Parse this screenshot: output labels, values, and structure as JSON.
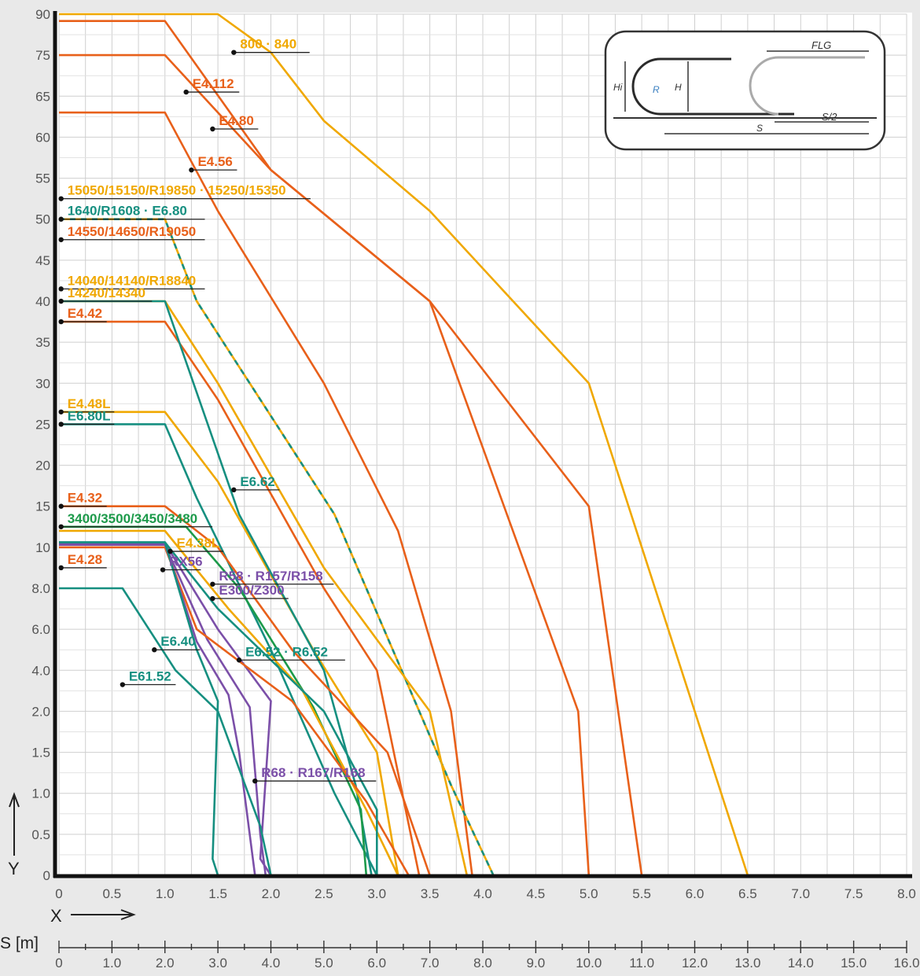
{
  "chart_data": {
    "type": "line",
    "title": "",
    "xlabel": "X",
    "ylabel": "Y",
    "x_ticks": [
      "0",
      "0.5",
      "1.0",
      "1.5",
      "2.0",
      "2.5",
      "3.0",
      "3.5",
      "4.0",
      "4.5",
      "5.0",
      "5.5",
      "6.0",
      "6.5",
      "7.0",
      "7.5",
      "8.0"
    ],
    "y_ticks": [
      {
        "label": "0",
        "value": 0
      },
      {
        "label": "0.5",
        "value": 0.5
      },
      {
        "label": "1.0",
        "value": 1.0
      },
      {
        "label": "1.5",
        "value": 1.5
      },
      {
        "label": "2.0",
        "value": 2.0
      },
      {
        "label": "4.0",
        "value": 4.0
      },
      {
        "label": "6.0",
        "value": 6.0
      },
      {
        "label": "8.0",
        "value": 8.0
      },
      {
        "label": "10",
        "value": 10
      },
      {
        "label": "15",
        "value": 15
      },
      {
        "label": "20",
        "value": 20
      },
      {
        "label": "25",
        "value": 25
      },
      {
        "label": "30",
        "value": 30
      },
      {
        "label": "35",
        "value": 35
      },
      {
        "label": "40",
        "value": 40
      },
      {
        "label": "45",
        "value": 45
      },
      {
        "label": "50",
        "value": 50
      },
      {
        "label": "55",
        "value": 55
      },
      {
        "label": "60",
        "value": 60
      },
      {
        "label": "65",
        "value": 65
      },
      {
        "label": "75",
        "value": 75
      },
      {
        "label": "90",
        "value": 90
      }
    ],
    "s_axis": {
      "label": "S [m]",
      "ticks": [
        "0",
        "1.0",
        "2.0",
        "3.0",
        "4.0",
        "5.0",
        "6.0",
        "7.0",
        "8.0",
        "9.0",
        "10.0",
        "11.0",
        "12.0",
        "13.0",
        "14.0",
        "15.0",
        "16.0"
      ]
    },
    "xlim": [
      0,
      8.0
    ],
    "y_scale": "segmented",
    "grid": true,
    "legend": "inline labels",
    "series": [
      {
        "name": "800 · 840",
        "color": "#f0a800",
        "points": [
          [
            0,
            90
          ],
          [
            1.5,
            90
          ],
          [
            2.0,
            76
          ],
          [
            2.5,
            62
          ],
          [
            3.5,
            51
          ],
          [
            5.0,
            30
          ],
          [
            6.5,
            0
          ]
        ]
      },
      {
        "name": "E4.112",
        "color": "#e8601a",
        "points": [
          [
            0,
            87.5
          ],
          [
            1.0,
            87.5
          ],
          [
            2.0,
            56
          ],
          [
            3.5,
            40
          ],
          [
            5.0,
            15
          ],
          [
            5.5,
            0
          ]
        ]
      },
      {
        "name": "E4.80",
        "color": "#e8601a",
        "points": [
          [
            0,
            75
          ],
          [
            1.0,
            75
          ],
          [
            2.0,
            56
          ],
          [
            3.5,
            40
          ],
          [
            4.9,
            2
          ],
          [
            5.0,
            0
          ]
        ]
      },
      {
        "name": "E4.56",
        "color": "#e8601a",
        "points": [
          [
            0,
            63
          ],
          [
            1.0,
            63
          ],
          [
            1.5,
            51
          ],
          [
            2.5,
            30
          ],
          [
            3.2,
            12
          ],
          [
            3.7,
            2
          ],
          [
            3.9,
            0
          ]
        ]
      },
      {
        "name": "15050/15150/R19850 · 15250/15350",
        "color": "#f0a800",
        "points": [
          [
            0,
            52
          ],
          [
            0,
            52
          ]
        ]
      },
      {
        "name": "1640/R1608 · E6.80",
        "color": "#f0a800",
        "dashed": true,
        "points": [
          [
            0,
            50
          ],
          [
            1.0,
            50
          ],
          [
            1.3,
            40
          ],
          [
            2.6,
            14
          ],
          [
            3.7,
            1.1
          ],
          [
            4.1,
            0
          ]
        ]
      },
      {
        "name": "14550/14650/R19050",
        "color": "#e8601a",
        "points": [
          [
            0,
            47.5
          ],
          [
            0,
            47.5
          ]
        ]
      },
      {
        "name": "14040/14140/R18840 14240/14340",
        "color": "#f0a800",
        "points": [
          [
            0,
            40
          ],
          [
            1.0,
            40
          ],
          [
            1.5,
            30
          ],
          [
            2.5,
            9
          ],
          [
            3.5,
            2
          ],
          [
            3.85,
            0
          ]
        ]
      },
      {
        "name": "E4.42",
        "color": "#e8601a",
        "points": [
          [
            0,
            37.5
          ],
          [
            1.0,
            37.5
          ],
          [
            1.5,
            28
          ],
          [
            2.5,
            8
          ],
          [
            3.0,
            4
          ],
          [
            3.4,
            0
          ]
        ]
      },
      {
        "name": "E4.48L",
        "color": "#f0a800",
        "points": [
          [
            0,
            26.5
          ],
          [
            1.0,
            26.5
          ],
          [
            1.5,
            18
          ],
          [
            2.4,
            5
          ],
          [
            3.0,
            1.5
          ],
          [
            3.2,
            0
          ]
        ]
      },
      {
        "name": "E6.80L",
        "color": "#168f80",
        "points": [
          [
            0,
            25
          ],
          [
            1.0,
            25
          ],
          [
            1.3,
            16
          ],
          [
            2.0,
            5
          ],
          [
            2.6,
            1
          ],
          [
            3.0,
            0
          ]
        ]
      },
      {
        "name": "E6.62",
        "color": "#168f80",
        "points": [
          [
            0,
            40
          ],
          [
            1.0,
            40
          ],
          [
            1.7,
            14
          ],
          [
            2.5,
            4
          ],
          [
            2.8,
            1.1
          ],
          [
            2.95,
            0
          ]
        ]
      },
      {
        "name": "E4.32",
        "color": "#e8601a",
        "points": [
          [
            0,
            15
          ],
          [
            1.0,
            15
          ],
          [
            1.5,
            10
          ],
          [
            2.2,
            5
          ],
          [
            3.1,
            1.5
          ],
          [
            3.5,
            0
          ]
        ]
      },
      {
        "name": "3400/3500/3450/3480",
        "color": "#1c9a4a",
        "points": [
          [
            0,
            12.5
          ],
          [
            1.2,
            12.5
          ],
          [
            1.7,
            8
          ],
          [
            2.4,
            2.2
          ],
          [
            2.85,
            0.8
          ],
          [
            2.9,
            0
          ]
        ]
      },
      {
        "name": "E4.38L",
        "color": "#f0a800",
        "points": [
          [
            0,
            12
          ],
          [
            1.0,
            12
          ],
          [
            1.6,
            7
          ],
          [
            2.3,
            3
          ],
          [
            2.9,
            0.8
          ],
          [
            3.2,
            0
          ]
        ]
      },
      {
        "name": "RX56",
        "color": "#7b4fa8",
        "points": [
          [
            0,
            10.5
          ],
          [
            1.0,
            10.5
          ],
          [
            1.5,
            6
          ],
          [
            2.0,
            2.5
          ],
          [
            1.9,
            0.2
          ],
          [
            2.0,
            0
          ]
        ]
      },
      {
        "name": "R58 · R157/R158 E300/Z300",
        "color": "#7b4fa8",
        "points": [
          [
            0,
            10.3
          ],
          [
            1.0,
            10.3
          ],
          [
            1.4,
            5.5
          ],
          [
            1.8,
            2.2
          ],
          [
            1.9,
            0.5
          ],
          [
            1.95,
            0
          ]
        ]
      },
      {
        "name": "E4.28",
        "color": "#e8601a",
        "points": [
          [
            0,
            10
          ],
          [
            1.0,
            10
          ],
          [
            1.3,
            6
          ],
          [
            2.2,
            2.5
          ],
          [
            2.9,
            0.9
          ],
          [
            3.3,
            0
          ]
        ]
      },
      {
        "name": "E6.52 · R6.52",
        "color": "#168f80",
        "points": [
          [
            0,
            10.6
          ],
          [
            1.0,
            10.6
          ],
          [
            1.5,
            7
          ],
          [
            2.5,
            2
          ],
          [
            3.0,
            0.8
          ],
          [
            3.0,
            0
          ]
        ]
      },
      {
        "name": "R68 · R167/R168",
        "color": "#7b4fa8",
        "points": [
          [
            0,
            10.4
          ],
          [
            1.0,
            10.4
          ],
          [
            1.3,
            5.4
          ],
          [
            1.6,
            2.8
          ],
          [
            1.7,
            1.5
          ],
          [
            1.85,
            0
          ]
        ]
      },
      {
        "name": "E6.40",
        "color": "#168f80",
        "points": [
          [
            0,
            8
          ],
          [
            0.6,
            8
          ],
          [
            1.1,
            4
          ],
          [
            1.5,
            2
          ],
          [
            1.9,
            0.6
          ],
          [
            2.0,
            0
          ]
        ]
      },
      {
        "name": "E61.52",
        "color": "#168f80",
        "points": [
          [
            0,
            10.6
          ],
          [
            1.0,
            10.6
          ],
          [
            1.3,
            5
          ],
          [
            1.5,
            2.5
          ],
          [
            1.45,
            0.2
          ],
          [
            1.5,
            0
          ]
        ]
      }
    ],
    "labels": [
      {
        "text": "800 · 840",
        "color": "#f0a800",
        "x": 1.65,
        "y": 76
      },
      {
        "text": "E4.112",
        "color": "#e8601a",
        "x": 1.2,
        "y": 66
      },
      {
        "text": "E4.80",
        "color": "#e8601a",
        "x": 1.45,
        "y": 61
      },
      {
        "text": "E4.56",
        "color": "#e8601a",
        "x": 1.25,
        "y": 56
      },
      {
        "text": "15050/15150/R19850 · 15250/15350",
        "color": "#f0a800",
        "x": 0.02,
        "y": 52.5
      },
      {
        "text": "1640/R1608 · E6.80",
        "color": "#168f80",
        "x": 0.02,
        "y": 50
      },
      {
        "text": "14550/14650/R19050",
        "color": "#e8601a",
        "x": 0.02,
        "y": 47.5
      },
      {
        "text": "14040/14140/R18840",
        "color": "#f0a800",
        "x": 0.02,
        "y": 41.5
      },
      {
        "text": "14240/14340",
        "color": "#f0a800",
        "x": 0.02,
        "y": 40
      },
      {
        "text": "E4.42",
        "color": "#e8601a",
        "x": 0.02,
        "y": 37.5
      },
      {
        "text": "E4.48L",
        "color": "#f0a800",
        "x": 0.02,
        "y": 26.5
      },
      {
        "text": "E6.80L",
        "color": "#168f80",
        "x": 0.02,
        "y": 25
      },
      {
        "text": "E6.62",
        "color": "#168f80",
        "x": 1.65,
        "y": 17
      },
      {
        "text": "E4.32",
        "color": "#e8601a",
        "x": 0.02,
        "y": 15
      },
      {
        "text": "3400/3500/3450/3480",
        "color": "#1c9a4a",
        "x": 0.02,
        "y": 12.5
      },
      {
        "text": "E4.38L",
        "color": "#f0a800",
        "x": 1.05,
        "y": 9.8
      },
      {
        "text": "RX56",
        "color": "#7b4fa8",
        "x": 0.98,
        "y": 8.9
      },
      {
        "text": "R58 · R157/R158",
        "color": "#7b4fa8",
        "x": 1.45,
        "y": 8.2
      },
      {
        "text": "E300/Z300",
        "color": "#7b4fa8",
        "x": 1.45,
        "y": 7.5
      },
      {
        "text": "E4.28",
        "color": "#e8601a",
        "x": 0.02,
        "y": 9
      },
      {
        "text": "E6.52 · R6.52",
        "color": "#168f80",
        "x": 1.7,
        "y": 4.5
      },
      {
        "text": "R68 · R167/R168",
        "color": "#7b4fa8",
        "x": 1.85,
        "y": 1.15
      },
      {
        "text": "E6.40",
        "color": "#168f80",
        "x": 0.9,
        "y": 5
      },
      {
        "text": "E61.52",
        "color": "#168f80",
        "x": 0.6,
        "y": 3.3
      }
    ],
    "inset": {
      "labels": [
        "FLG",
        "Hi",
        "R",
        "H",
        "S/2",
        "S"
      ]
    }
  }
}
